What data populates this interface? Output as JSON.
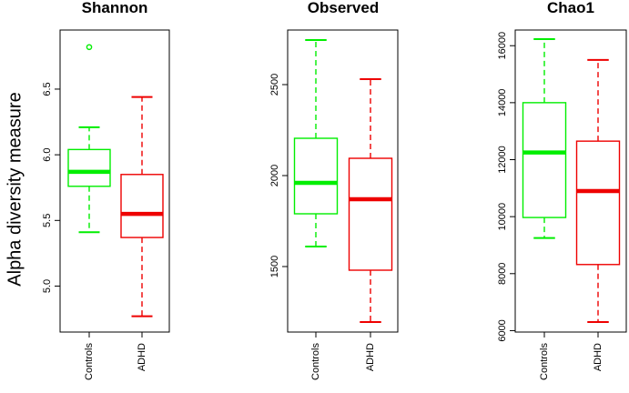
{
  "figure": {
    "ylabel": "Alpha diversity measure"
  },
  "chart_data": [
    {
      "type": "box",
      "title": "Shannon",
      "categories": [
        "Controls",
        "ADHD"
      ],
      "colors": [
        "#00ee00",
        "#ee0000"
      ],
      "ylim": [
        4.65,
        6.95
      ],
      "yticks": [
        5.0,
        5.5,
        6.0,
        6.5
      ],
      "boxes": [
        {
          "name": "Controls",
          "min": 5.41,
          "q1": 5.76,
          "median": 5.87,
          "q3": 6.04,
          "max": 6.21,
          "outliers": [
            6.82
          ]
        },
        {
          "name": "ADHD",
          "min": 4.77,
          "q1": 5.37,
          "median": 5.55,
          "q3": 5.85,
          "max": 6.44,
          "outliers": []
        }
      ]
    },
    {
      "type": "box",
      "title": "Observed",
      "categories": [
        "Controls",
        "ADHD"
      ],
      "colors": [
        "#00ee00",
        "#ee0000"
      ],
      "ylim": [
        1140,
        2800
      ],
      "yticks": [
        1500,
        2000,
        2500
      ],
      "boxes": [
        {
          "name": "Controls",
          "min": 1610,
          "q1": 1790,
          "median": 1960,
          "q3": 2205,
          "max": 2745,
          "outliers": []
        },
        {
          "name": "ADHD",
          "min": 1195,
          "q1": 1480,
          "median": 1870,
          "q3": 2095,
          "max": 2530,
          "outliers": []
        }
      ]
    },
    {
      "type": "box",
      "title": "Chao1",
      "categories": [
        "Controls",
        "ADHD"
      ],
      "colors": [
        "#00ee00",
        "#ee0000"
      ],
      "ylim": [
        5950,
        16550
      ],
      "yticks": [
        6000,
        8000,
        10000,
        12000,
        14000,
        16000
      ],
      "boxes": [
        {
          "name": "Controls",
          "min": 9250,
          "q1": 9970,
          "median": 12250,
          "q3": 14000,
          "max": 16230,
          "outliers": []
        },
        {
          "name": "ADHD",
          "min": 6300,
          "q1": 8320,
          "median": 10900,
          "q3": 12650,
          "max": 15500,
          "outliers": []
        }
      ]
    }
  ]
}
